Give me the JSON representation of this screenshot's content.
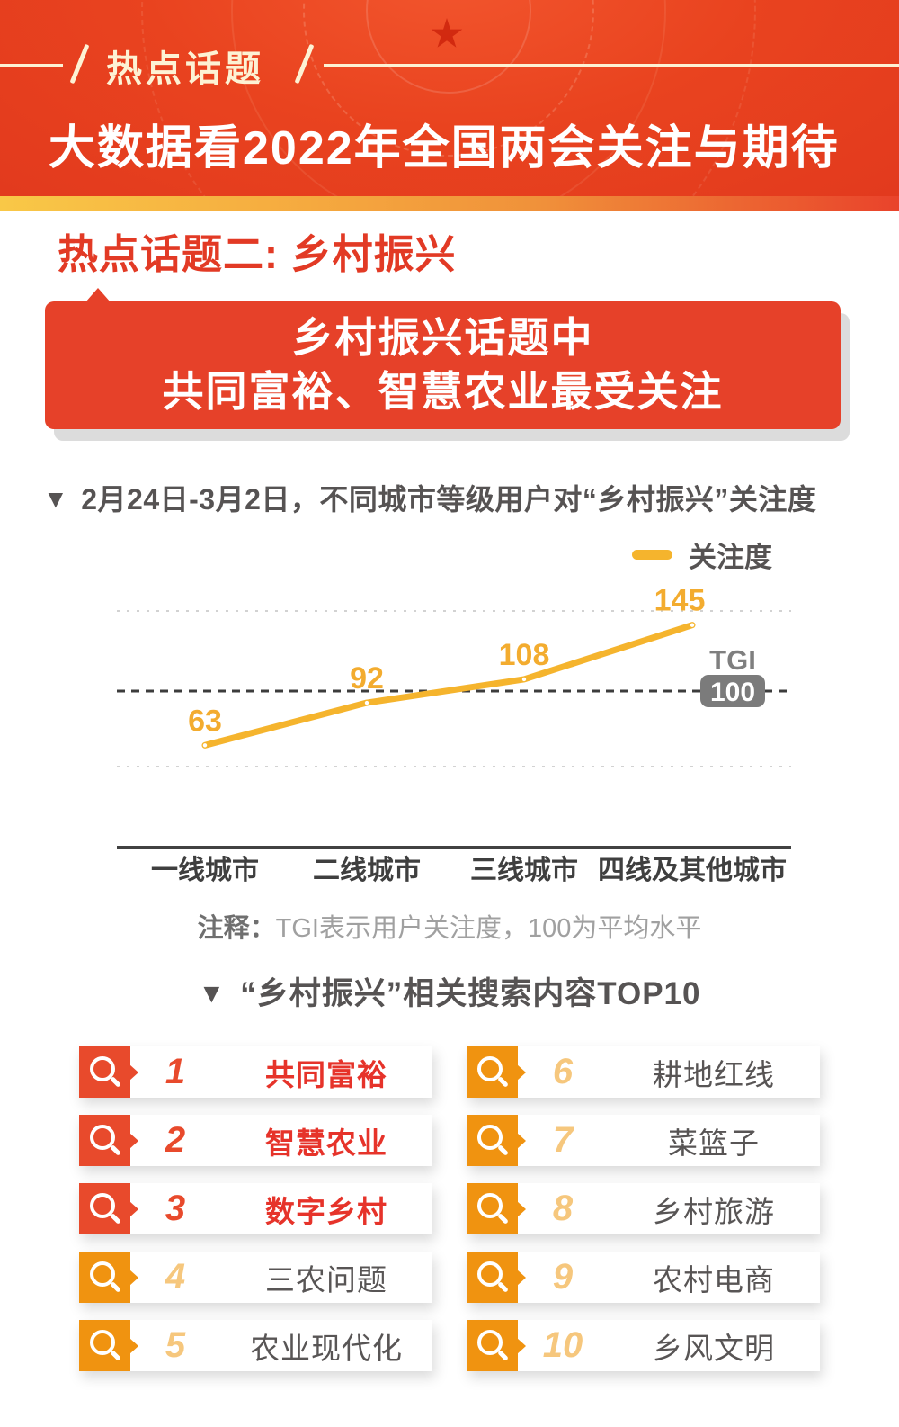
{
  "colors": {
    "header_red": "#e9431f",
    "banner_red": "#e64129",
    "rank_red": "#e84a2c",
    "rank_orange": "#f09310",
    "rank_number_light": "#f6c77d",
    "line_yellow": "#f5b42d",
    "gradient_strip": [
      "#f9c847",
      "#f0913a",
      "#e9432b"
    ],
    "text_dark_gray": "#565353",
    "note_gray": "#a0a0a0",
    "tgi_badge_gray": "#7b7b7b",
    "header_cream": "#fdf2d4"
  },
  "header": {
    "tag": "热点话题",
    "title": "大数据看2022年全国两会关注与期待"
  },
  "section": {
    "title": "热点话题二: 乡村振兴"
  },
  "banner": {
    "line1": "乡村振兴话题中",
    "line2": "共同富裕、智慧农业最受关注"
  },
  "chart_section": {
    "marker": "▼",
    "title": "2月24日-3月2日，不同城市等级用户对“乡村振兴”关注度",
    "legend_label": "关注度",
    "tgi_label": "TGI",
    "tgi_value": "100",
    "note_label": "注释：",
    "note_text": "TGI表示用户关注度，100为平均水平"
  },
  "top10": {
    "marker": "▼",
    "title": "“乡村振兴”相关搜索内容TOP10",
    "items": [
      {
        "rank": "1",
        "label": "共同富裕",
        "tier": "top"
      },
      {
        "rank": "2",
        "label": "智慧农业",
        "tier": "top"
      },
      {
        "rank": "3",
        "label": "数字乡村",
        "tier": "top"
      },
      {
        "rank": "4",
        "label": "三农问题",
        "tier": "normal"
      },
      {
        "rank": "5",
        "label": "农业现代化",
        "tier": "normal"
      },
      {
        "rank": "6",
        "label": "耕地红线",
        "tier": "normal"
      },
      {
        "rank": "7",
        "label": "菜篮子",
        "tier": "normal"
      },
      {
        "rank": "8",
        "label": "乡村旅游",
        "tier": "normal"
      },
      {
        "rank": "9",
        "label": "农村电商",
        "tier": "normal"
      },
      {
        "rank": "10",
        "label": "乡风文明",
        "tier": "normal"
      }
    ]
  },
  "chart_data": [
    {
      "type": "line",
      "title": "2月24日-3月2日，不同城市等级用户对“乡村振兴”关注度",
      "categories": [
        "一线城市",
        "二线城市",
        "三线城市",
        "四线及其他城市"
      ],
      "series": [
        {
          "name": "关注度",
          "values": [
            63,
            92,
            108,
            145
          ],
          "color": "#f5b42d"
        }
      ],
      "reference_line": {
        "label": "TGI",
        "value": 100,
        "style": "dark-dashed"
      },
      "gridlines": {
        "style": "light-dotted",
        "approx_values": [
          155,
          48
        ]
      },
      "ylim": [
        40,
        165
      ],
      "legend_position": "top-right",
      "data_labels": true,
      "note": "注释：TGI表示用户关注度，100为平均水平"
    },
    {
      "type": "table",
      "title": "“乡村振兴”相关搜索内容TOP10",
      "columns": [
        "rank",
        "keyword"
      ],
      "rows": [
        [
          1,
          "共同富裕"
        ],
        [
          2,
          "智慧农业"
        ],
        [
          3,
          "数字乡村"
        ],
        [
          4,
          "三农问题"
        ],
        [
          5,
          "农业现代化"
        ],
        [
          6,
          "耕地红线"
        ],
        [
          7,
          "菜篮子"
        ],
        [
          8,
          "乡村旅游"
        ],
        [
          9,
          "农村电商"
        ],
        [
          10,
          "乡风文明"
        ]
      ]
    }
  ]
}
